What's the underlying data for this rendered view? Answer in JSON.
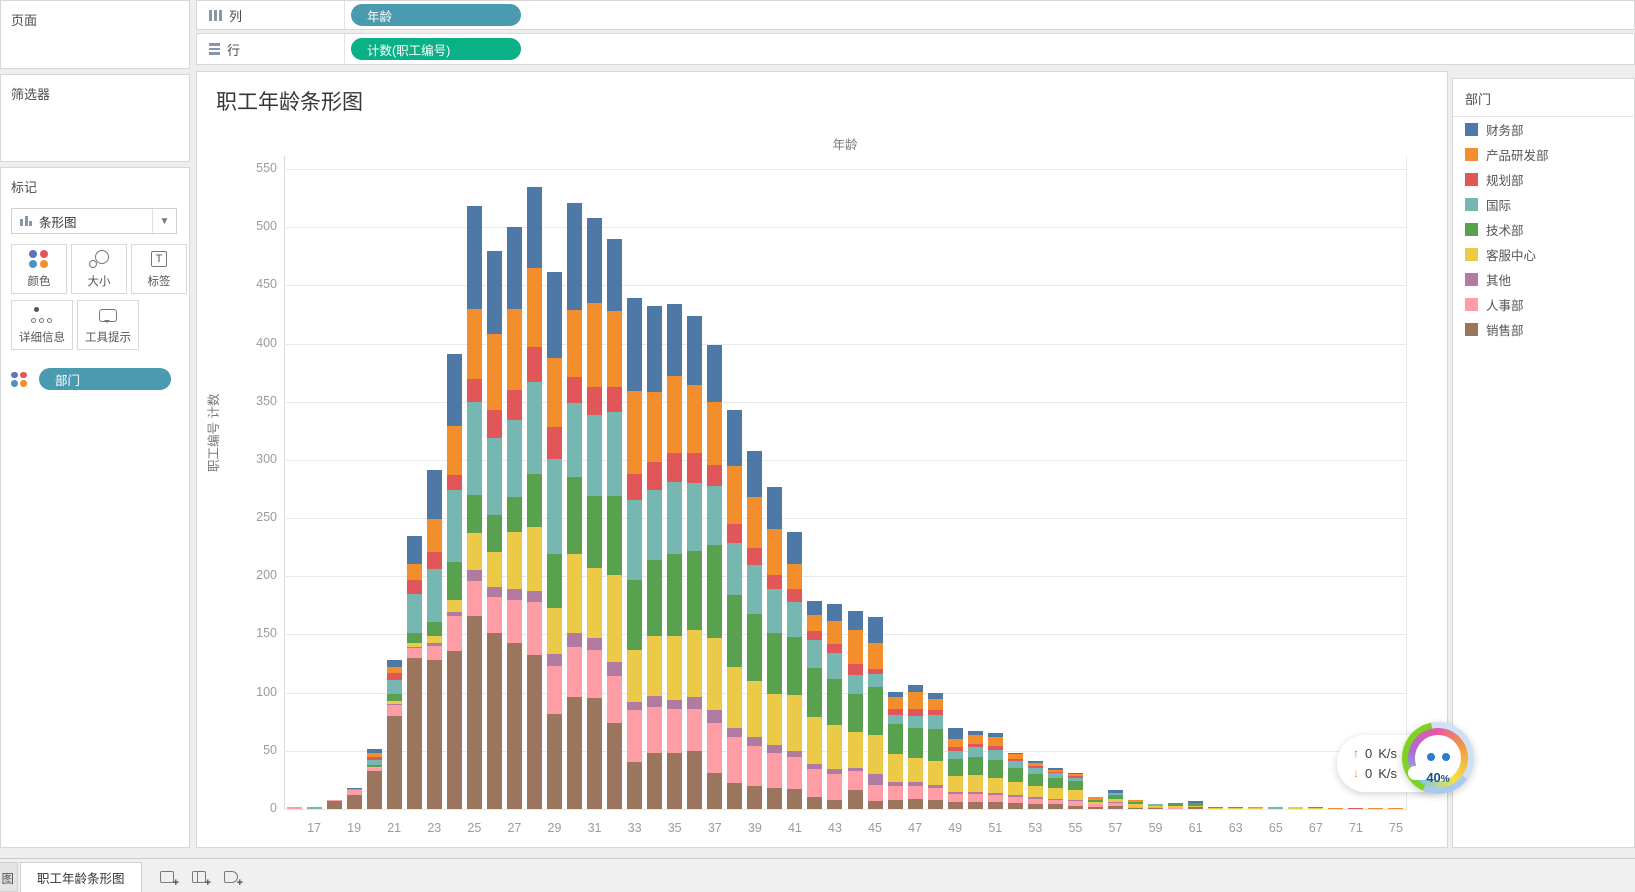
{
  "shelves": {
    "columns_label": "列",
    "rows_label": "行",
    "columns_pill": "年龄",
    "rows_pill": "计数(职工编号)",
    "columns_pill_color": "#4a9bb0",
    "rows_pill_color": "#0ab086"
  },
  "sidebar": {
    "pages_label": "页面",
    "filters_label": "筛选器",
    "marks_label": "标记",
    "mark_type": "条形图",
    "buttons": [
      {
        "label": "颜色"
      },
      {
        "label": "大小"
      },
      {
        "label": "标签"
      },
      {
        "label": "详细信息"
      },
      {
        "label": "工具提示"
      }
    ],
    "marks_pill": "部门",
    "marks_pill_color": "#4a9bb0"
  },
  "sheet": {
    "title": "职工年龄条形图"
  },
  "legend": {
    "title": "部门",
    "items": [
      {
        "label": "财务部",
        "color": "#4e79a7"
      },
      {
        "label": "产品研发部",
        "color": "#f28e2b"
      },
      {
        "label": "规划部",
        "color": "#e15759"
      },
      {
        "label": "国际",
        "color": "#76b7b2"
      },
      {
        "label": "技术部",
        "color": "#59a14f"
      },
      {
        "label": "客服中心",
        "color": "#edc948"
      },
      {
        "label": "其他",
        "color": "#b07aa1"
      },
      {
        "label": "人事部",
        "color": "#ff9da7"
      },
      {
        "label": "销售部",
        "color": "#9c755f"
      }
    ]
  },
  "chart_data": {
    "type": "bar",
    "variant": "stacked",
    "title": "职工年龄条形图",
    "xlabel": "年龄",
    "ylabel": "职工编号 计数",
    "ylim": [
      0,
      550
    ],
    "ytick_step": 50,
    "grid": "horizontal",
    "legend_position": "right",
    "stack_order_bottom_to_top": [
      "销售部",
      "人事部",
      "其他",
      "客服中心",
      "技术部",
      "国际",
      "规划部",
      "产品研发部",
      "财务部"
    ],
    "stack_colors": [
      "#9c755f",
      "#ff9da7",
      "#b07aa1",
      "#edc948",
      "#59a14f",
      "#76b7b2",
      "#e15759",
      "#f28e2b",
      "#4e79a7"
    ],
    "x_tick_ages": [
      17,
      19,
      21,
      23,
      25,
      27,
      29,
      31,
      33,
      35,
      37,
      39,
      41,
      43,
      45,
      47,
      49,
      51,
      53,
      55,
      57,
      59,
      61,
      63,
      65,
      67,
      71,
      75
    ],
    "bars": [
      {
        "age": 16,
        "v": [
          0,
          2,
          0,
          0,
          0,
          0,
          0,
          0,
          0
        ]
      },
      {
        "age": 17,
        "v": [
          0,
          0,
          0,
          0,
          0,
          2,
          0,
          0,
          0
        ]
      },
      {
        "age": 18,
        "v": [
          7,
          1,
          0,
          0,
          0,
          0,
          0,
          0,
          0
        ]
      },
      {
        "age": 19,
        "v": [
          12,
          4,
          0,
          0,
          0,
          0,
          0,
          1,
          1
        ]
      },
      {
        "age": 20,
        "v": [
          33,
          2,
          0,
          1,
          2,
          4,
          3,
          3,
          4
        ]
      },
      {
        "age": 21,
        "v": [
          80,
          9,
          1,
          3,
          6,
          12,
          6,
          5,
          6
        ]
      },
      {
        "age": 22,
        "v": [
          130,
          8,
          1,
          4,
          8,
          34,
          12,
          14,
          24
        ]
      },
      {
        "age": 23,
        "v": [
          128,
          12,
          3,
          6,
          12,
          45,
          15,
          28,
          42
        ]
      },
      {
        "age": 24,
        "v": [
          136,
          30,
          3,
          11,
          32,
          62,
          13,
          42,
          62
        ]
      },
      {
        "age": 25,
        "v": [
          166,
          30,
          9,
          32,
          33,
          80,
          20,
          60,
          88
        ]
      },
      {
        "age": 26,
        "v": [
          151,
          31,
          9,
          30,
          32,
          66,
          24,
          65,
          72
        ]
      },
      {
        "age": 27,
        "v": [
          143,
          37,
          9,
          49,
          30,
          66,
          26,
          70,
          70
        ]
      },
      {
        "age": 28,
        "v": [
          132,
          46,
          9,
          55,
          46,
          79,
          30,
          68,
          70
        ]
      },
      {
        "age": 29,
        "v": [
          82,
          41,
          10,
          40,
          46,
          82,
          27,
          60,
          74
        ]
      },
      {
        "age": 30,
        "v": [
          96,
          43,
          12,
          68,
          66,
          64,
          22,
          58,
          92
        ]
      },
      {
        "age": 31,
        "v": [
          95,
          42,
          10,
          60,
          62,
          70,
          24,
          72,
          73
        ]
      },
      {
        "age": 32,
        "v": [
          74,
          40,
          12,
          75,
          68,
          72,
          22,
          65,
          62
        ]
      },
      {
        "age": 33,
        "v": [
          40,
          45,
          7,
          45,
          60,
          69,
          22,
          71,
          80
        ]
      },
      {
        "age": 34,
        "v": [
          48,
          40,
          9,
          52,
          65,
          60,
          24,
          60,
          74
        ]
      },
      {
        "age": 35,
        "v": [
          48,
          38,
          8,
          55,
          70,
          62,
          25,
          66,
          62
        ]
      },
      {
        "age": 36,
        "v": [
          50,
          36,
          10,
          58,
          68,
          58,
          26,
          58,
          60
        ]
      },
      {
        "age": 37,
        "v": [
          31,
          43,
          11,
          62,
          80,
          51,
          18,
          54,
          49
        ]
      },
      {
        "age": 38,
        "v": [
          22,
          40,
          8,
          52,
          62,
          45,
          16,
          50,
          48
        ]
      },
      {
        "age": 39,
        "v": [
          20,
          34,
          8,
          48,
          58,
          42,
          14,
          44,
          40
        ]
      },
      {
        "age": 40,
        "v": [
          18,
          30,
          7,
          44,
          52,
          38,
          12,
          40,
          36
        ]
      },
      {
        "age": 41,
        "v": [
          17,
          28,
          5,
          48,
          50,
          30,
          11,
          22,
          27
        ]
      },
      {
        "age": 42,
        "v": [
          10,
          24,
          5,
          40,
          42,
          24,
          8,
          14,
          12
        ]
      },
      {
        "age": 43,
        "v": [
          8,
          22,
          4,
          38,
          40,
          22,
          8,
          20,
          14
        ]
      },
      {
        "age": 44,
        "v": [
          16,
          17,
          2,
          31,
          33,
          16,
          10,
          29,
          16
        ]
      },
      {
        "age": 45,
        "v": [
          7,
          14,
          9,
          34,
          41,
          11,
          4,
          23,
          22
        ]
      },
      {
        "age": 46,
        "v": [
          8,
          12,
          3,
          24,
          26,
          8,
          5,
          10,
          5
        ]
      },
      {
        "age": 47,
        "v": [
          9,
          11,
          3,
          21,
          26,
          10,
          6,
          15,
          6
        ]
      },
      {
        "age": 48,
        "v": [
          8,
          10,
          3,
          20,
          28,
          12,
          4,
          10,
          5
        ]
      },
      {
        "age": 49,
        "v": [
          6,
          7,
          2,
          13,
          15,
          7,
          3,
          7,
          10
        ]
      },
      {
        "age": 50,
        "v": [
          6,
          7,
          2,
          14,
          16,
          8,
          3,
          8,
          3
        ]
      },
      {
        "age": 51,
        "v": [
          6,
          6,
          2,
          13,
          15,
          9,
          3,
          8,
          3
        ]
      },
      {
        "age": 52,
        "v": [
          5,
          5,
          2,
          11,
          12,
          6,
          2,
          4,
          1
        ]
      },
      {
        "age": 53,
        "v": [
          4,
          5,
          1,
          10,
          10,
          5,
          2,
          3,
          1
        ]
      },
      {
        "age": 54,
        "v": [
          4,
          4,
          1,
          9,
          9,
          4,
          1,
          2,
          1
        ]
      },
      {
        "age": 55,
        "v": [
          3,
          4,
          1,
          8,
          8,
          3,
          1,
          2,
          1
        ]
      },
      {
        "age": 56,
        "v": [
          2,
          2,
          0,
          2,
          2,
          1,
          0,
          1,
          0
        ]
      },
      {
        "age": 57,
        "v": [
          3,
          2,
          1,
          3,
          3,
          1,
          0,
          1,
          2
        ]
      },
      {
        "age": 58,
        "v": [
          1,
          1,
          0,
          2,
          2,
          1,
          0,
          1,
          0
        ]
      },
      {
        "age": 59,
        "v": [
          1,
          1,
          0,
          1,
          0,
          1,
          0,
          0,
          0
        ]
      },
      {
        "age": 60,
        "v": [
          0,
          1,
          0,
          2,
          1,
          0,
          1,
          0,
          0
        ]
      },
      {
        "age": 61,
        "v": [
          2,
          0,
          0,
          1,
          2,
          0,
          0,
          0,
          2
        ]
      },
      {
        "age": 62,
        "v": [
          0,
          0,
          0,
          1,
          1,
          0,
          0,
          0,
          0
        ]
      },
      {
        "age": 63,
        "v": [
          0,
          0,
          0,
          1,
          1,
          0,
          0,
          0,
          0
        ]
      },
      {
        "age": 64,
        "v": [
          0,
          0,
          0,
          1,
          0,
          0,
          0,
          1,
          0
        ]
      },
      {
        "age": 65,
        "v": [
          0,
          0,
          0,
          0,
          0,
          2,
          0,
          0,
          0
        ]
      },
      {
        "age": 66,
        "v": [
          0,
          0,
          0,
          2,
          0,
          0,
          0,
          0,
          0
        ]
      },
      {
        "age": 67,
        "v": [
          0,
          0,
          0,
          1,
          1,
          0,
          0,
          0,
          0
        ]
      },
      {
        "age": 70,
        "v": [
          0,
          0,
          0,
          0,
          0,
          0,
          0,
          1,
          0
        ]
      },
      {
        "age": 71,
        "v": [
          0,
          0,
          0,
          0,
          0,
          0,
          1,
          0,
          0
        ]
      },
      {
        "age": 73,
        "v": [
          0,
          0,
          0,
          0,
          0,
          0,
          0,
          1,
          0
        ]
      },
      {
        "age": 75,
        "v": [
          0,
          0,
          0,
          0,
          0,
          0,
          0,
          1,
          0
        ]
      }
    ]
  },
  "tabs": {
    "partial_tab": "图",
    "active_tab": "职工年龄条形图"
  },
  "net_widget": {
    "up_value": "0",
    "down_value": "0",
    "unit": "K/s",
    "percent": "40",
    "percent_sign": "%"
  }
}
